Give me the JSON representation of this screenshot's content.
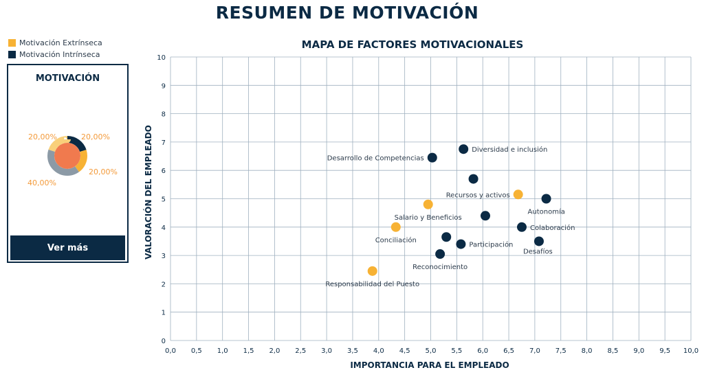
{
  "page": {
    "title": "RESUMEN DE MOTIVACIÓN"
  },
  "legend": {
    "items": [
      {
        "label": "Motivación Extrínseca",
        "color": "#f7b234"
      },
      {
        "label": "Motivación Intrínseca",
        "color": "#0b2a44"
      }
    ]
  },
  "card": {
    "title": "MOTIVACIÓN",
    "button_label": "Ver más",
    "donut": {
      "segments": [
        {
          "label": "20,00%",
          "value": 20,
          "color": "#0b2a44"
        },
        {
          "label": "20,00%",
          "value": 20,
          "color": "#f7b234"
        },
        {
          "label": "40,00%",
          "value": 40,
          "color": "#8c9aa6"
        },
        {
          "label": "20,00%",
          "value": 20,
          "color": "#f9d07a"
        }
      ],
      "center_color": "#f07a4e"
    }
  },
  "chart_data": {
    "type": "scatter",
    "title": "MAPA DE FACTORES MOTIVACIONALES",
    "xlabel": "IMPORTANCIA PARA EL EMPLEADO",
    "ylabel": "VALORACIÓN DEL EMPLEADO",
    "xlim": [
      0,
      10
    ],
    "ylim": [
      0,
      10
    ],
    "x_ticks": [
      "0,0",
      "0,5",
      "1,0",
      "1,5",
      "2,0",
      "2,5",
      "3,0",
      "3,5",
      "4,0",
      "4,5",
      "5,0",
      "5,5",
      "6,0",
      "6,5",
      "7,0",
      "7,5",
      "8,0",
      "8,5",
      "9,0",
      "9,5",
      "10,0"
    ],
    "y_ticks": [
      "0",
      "1",
      "2",
      "3",
      "4",
      "5",
      "6",
      "7",
      "8",
      "9",
      "10"
    ],
    "grid": true,
    "series": [
      {
        "name": "Motivación Extrínseca",
        "color": "#f7b234",
        "points": [
          {
            "x": 3.88,
            "y": 2.45,
            "label": "Responsabilidad del Puesto"
          },
          {
            "x": 4.33,
            "y": 4.0,
            "label": "Conciliación"
          },
          {
            "x": 4.95,
            "y": 4.8,
            "label": "Salario y Beneficios"
          },
          {
            "x": 6.68,
            "y": 5.15,
            "label": "Recursos y activos"
          }
        ]
      },
      {
        "name": "Motivación Intrínseca",
        "color": "#0b2a44",
        "points": [
          {
            "x": 5.03,
            "y": 6.45,
            "label": "Desarrollo de Competencias"
          },
          {
            "x": 5.63,
            "y": 6.75,
            "label": "Diversidad e inclusión"
          },
          {
            "x": 5.82,
            "y": 5.7,
            "label": ""
          },
          {
            "x": 6.05,
            "y": 4.4,
            "label": ""
          },
          {
            "x": 7.22,
            "y": 5.0,
            "label": "Autonomía"
          },
          {
            "x": 6.75,
            "y": 4.0,
            "label": "Colaboración"
          },
          {
            "x": 7.08,
            "y": 3.5,
            "label": "Desafíos"
          },
          {
            "x": 5.3,
            "y": 3.65,
            "label": ""
          },
          {
            "x": 5.58,
            "y": 3.4,
            "label": "Participación"
          },
          {
            "x": 5.18,
            "y": 3.05,
            "label": "Reconocimiento"
          }
        ]
      }
    ]
  }
}
